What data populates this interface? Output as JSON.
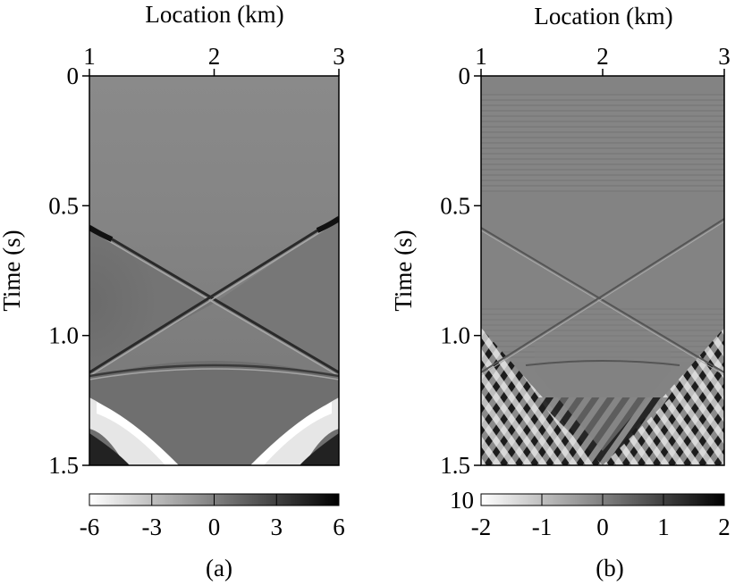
{
  "chart_data": [
    {
      "type": "heatmap",
      "panel_label": "(a)",
      "xlabel": "Location (km)",
      "ylabel": "Time (s)",
      "x_ticks": [
        "1",
        "2",
        "3"
      ],
      "y_ticks": [
        "0",
        "0.5",
        "1.0",
        "1.5"
      ],
      "xlim": [
        1,
        3
      ],
      "ylim": [
        0,
        1.5
      ],
      "y_inverted": true,
      "x_axis_position": "top",
      "colormap": "white-gray-black",
      "colorbar": {
        "ticks": [
          "-6",
          "-3",
          "0",
          "3",
          "6"
        ],
        "range": [
          -6,
          6
        ],
        "exponent_label": ""
      },
      "events": [
        {
          "kind": "linear",
          "from": [
            1,
            0.58
          ],
          "to": [
            3,
            1.16
          ]
        },
        {
          "kind": "linear",
          "from": [
            3,
            0.55
          ],
          "to": [
            1,
            1.16
          ]
        },
        {
          "kind": "hyperbola",
          "apex": [
            2,
            1.12
          ]
        }
      ],
      "crossing_point": [
        2,
        0.85
      ]
    },
    {
      "type": "heatmap",
      "panel_label": "(b)",
      "xlabel": "Location (km)",
      "ylabel": "Time (s)",
      "x_ticks": [
        "1",
        "2",
        "3"
      ],
      "y_ticks": [
        "0",
        "0.5",
        "1.0",
        "1.5"
      ],
      "xlim": [
        1,
        3
      ],
      "ylim": [
        0,
        1.5
      ],
      "y_inverted": true,
      "x_axis_position": "top",
      "colormap": "white-gray-black",
      "colorbar": {
        "ticks": [
          "-2",
          "-1",
          "0",
          "1",
          "2"
        ],
        "range": [
          -2,
          2
        ],
        "exponent_label": "10"
      },
      "events": [
        {
          "kind": "linear",
          "from": [
            1,
            0.58
          ],
          "to": [
            3,
            1.16
          ]
        },
        {
          "kind": "linear",
          "from": [
            3,
            0.55
          ],
          "to": [
            1,
            1.16
          ]
        },
        {
          "kind": "hyperbola",
          "apex": [
            2,
            1.11
          ]
        }
      ],
      "crossing_point": [
        2,
        0.85
      ]
    }
  ]
}
